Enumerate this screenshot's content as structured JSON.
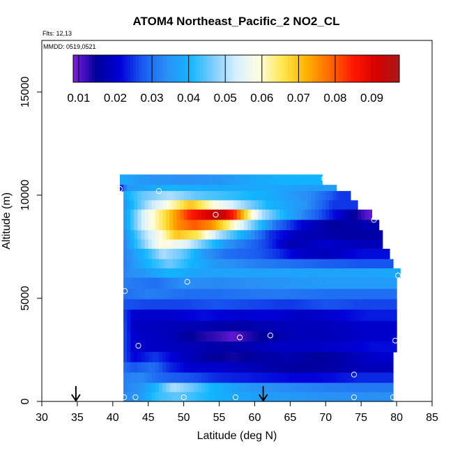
{
  "chart_data": {
    "type": "heatmap",
    "title": "ATOM4 Northeast_Pacific_2 NO2_CL",
    "flights_note": "Flts: 12,13",
    "date_note": "MMDD: 0519,0521",
    "xlabel": "Latitude (deg N)",
    "ylabel": "Altitude (m)",
    "xlim": [
      30,
      85
    ],
    "ylim": [
      0,
      17500
    ],
    "x_ticks": [
      "30",
      "35",
      "40",
      "45",
      "50",
      "55",
      "60",
      "65",
      "70",
      "75",
      "80",
      "85"
    ],
    "y_ticks": [
      "0",
      "5000",
      "10000",
      "15000"
    ],
    "colorbar": {
      "range": [
        0.0085,
        0.0975
      ],
      "tick_values": [
        0.01,
        0.02,
        0.03,
        0.04,
        0.05,
        0.06,
        0.07,
        0.08,
        0.09
      ],
      "tick_labels": [
        "0.01",
        "0.02",
        "0.03",
        "0.04",
        "0.05",
        "0.06",
        "0.07",
        "0.08",
        "0.09"
      ],
      "colors": [
        "#7f1fe0",
        "#00009a",
        "#0000d8",
        "#1a5cf0",
        "#2a8ff5",
        "#11b6ff",
        "#7dccff",
        "#d8f0ff",
        "#fffde0",
        "#ffe64d",
        "#ffb300",
        "#ff6a00",
        "#ff1a00",
        "#d80000",
        "#a81a1a"
      ]
    },
    "arrows_latitude": [
      34.8,
      61.2
    ],
    "layers": [
      {
        "alt": [
          10500,
          11000
        ],
        "lat": [
          41,
          69.5
        ],
        "cells": [
          [
            41,
            0.038
          ],
          [
            45,
            0.035
          ],
          [
            50,
            0.034
          ],
          [
            55,
            0.035
          ],
          [
            60,
            0.038
          ],
          [
            65,
            0.04
          ]
        ]
      },
      {
        "alt": [
          10200,
          10500
        ],
        "lat": [
          41,
          71.5
        ],
        "cells": [
          [
            41,
            0.02
          ],
          [
            42,
            0.035
          ],
          [
            48,
            0.04
          ],
          [
            55,
            0.038
          ],
          [
            62,
            0.038
          ],
          [
            68,
            0.036
          ]
        ]
      },
      {
        "alt": [
          9750,
          10200
        ],
        "lat": [
          41.5,
          73.5
        ],
        "cells": [
          [
            41.5,
            0.038
          ],
          [
            44,
            0.045
          ],
          [
            48,
            0.05
          ],
          [
            52,
            0.045
          ],
          [
            57,
            0.042
          ],
          [
            63,
            0.038
          ],
          [
            68,
            0.033
          ],
          [
            72,
            0.025
          ]
        ]
      },
      {
        "alt": [
          9300,
          9750
        ],
        "lat": [
          41.5,
          74.5
        ],
        "cells": [
          [
            41.5,
            0.035
          ],
          [
            45,
            0.05
          ],
          [
            48,
            0.06
          ],
          [
            51,
            0.07
          ],
          [
            54,
            0.06
          ],
          [
            58,
            0.05
          ],
          [
            62,
            0.04
          ],
          [
            67,
            0.035
          ],
          [
            71,
            0.025
          ]
        ]
      },
      {
        "alt": [
          8800,
          9300
        ],
        "lat": [
          41.5,
          76.5
        ],
        "cells": [
          [
            41.5,
            0.035
          ],
          [
            44.5,
            0.055
          ],
          [
            47,
            0.065
          ],
          [
            49,
            0.075
          ],
          [
            51,
            0.085
          ],
          [
            53,
            0.09
          ],
          [
            55,
            0.095
          ],
          [
            57,
            0.085
          ],
          [
            59,
            0.065
          ],
          [
            61,
            0.05
          ],
          [
            64,
            0.04
          ],
          [
            68,
            0.03
          ],
          [
            72,
            0.02
          ],
          [
            76,
            0.01
          ]
        ]
      },
      {
        "alt": [
          8300,
          8800
        ],
        "lat": [
          41.5,
          77.5
        ],
        "cells": [
          [
            41.5,
            0.035
          ],
          [
            44.5,
            0.055
          ],
          [
            47,
            0.065
          ],
          [
            49,
            0.075
          ],
          [
            51.5,
            0.08
          ],
          [
            54,
            0.075
          ],
          [
            57,
            0.06
          ],
          [
            60,
            0.045
          ],
          [
            63,
            0.03
          ],
          [
            67,
            0.02
          ],
          [
            71,
            0.015
          ],
          [
            75,
            0.017
          ]
        ]
      },
      {
        "alt": [
          7850,
          8300
        ],
        "lat": [
          41.5,
          78
        ],
        "cells": [
          [
            41.5,
            0.033
          ],
          [
            44.5,
            0.05
          ],
          [
            47,
            0.06
          ],
          [
            49,
            0.07
          ],
          [
            52,
            0.065
          ],
          [
            55,
            0.05
          ],
          [
            58,
            0.04
          ],
          [
            62,
            0.025
          ],
          [
            66,
            0.018
          ],
          [
            72,
            0.016
          ]
        ]
      },
      {
        "alt": [
          7400,
          7850
        ],
        "lat": [
          41.5,
          78
        ],
        "cells": [
          [
            41.5,
            0.032
          ],
          [
            44.5,
            0.048
          ],
          [
            47,
            0.06
          ],
          [
            50,
            0.055
          ],
          [
            53,
            0.045
          ],
          [
            56,
            0.035
          ],
          [
            59,
            0.03
          ],
          [
            62,
            0.025
          ],
          [
            65,
            0.017
          ],
          [
            70,
            0.02
          ],
          [
            74,
            0.018
          ]
        ]
      },
      {
        "alt": [
          6900,
          7400
        ],
        "lat": [
          41.5,
          79
        ],
        "cells": [
          [
            41.5,
            0.032
          ],
          [
            45,
            0.042
          ],
          [
            47,
            0.05
          ],
          [
            50,
            0.045
          ],
          [
            53,
            0.035
          ],
          [
            56,
            0.03
          ],
          [
            60,
            0.028
          ],
          [
            63,
            0.025
          ],
          [
            66,
            0.02
          ],
          [
            70,
            0.018
          ],
          [
            75,
            0.022
          ]
        ]
      },
      {
        "alt": [
          6450,
          6900
        ],
        "lat": [
          41.5,
          79.5
        ],
        "cells": [
          [
            41.5,
            0.032
          ],
          [
            45,
            0.04
          ],
          [
            48,
            0.046
          ],
          [
            51,
            0.04
          ],
          [
            55,
            0.035
          ],
          [
            60,
            0.032
          ],
          [
            65,
            0.03
          ],
          [
            70,
            0.028
          ],
          [
            75,
            0.027
          ]
        ]
      },
      {
        "alt": [
          6000,
          6450
        ],
        "lat": [
          41.5,
          80.5
        ],
        "cells": [
          [
            41.5,
            0.033
          ],
          [
            45,
            0.036
          ],
          [
            48,
            0.04
          ],
          [
            52,
            0.037
          ],
          [
            57,
            0.037
          ],
          [
            63,
            0.037
          ],
          [
            68,
            0.037
          ],
          [
            74,
            0.037
          ],
          [
            79,
            0.038
          ]
        ]
      },
      {
        "alt": [
          5450,
          6000
        ],
        "lat": [
          41.5,
          80
        ],
        "cells": [
          [
            41.5,
            0.032
          ],
          [
            46,
            0.03
          ],
          [
            50,
            0.034
          ],
          [
            55,
            0.033
          ],
          [
            60,
            0.034
          ],
          [
            65,
            0.035
          ],
          [
            70,
            0.036
          ],
          [
            75,
            0.036
          ]
        ]
      },
      {
        "alt": [
          4950,
          5450
        ],
        "lat": [
          41.5,
          80
        ],
        "cells": [
          [
            41.5,
            0.03
          ],
          [
            45,
            0.032
          ],
          [
            50,
            0.03
          ],
          [
            55,
            0.03
          ],
          [
            60,
            0.031
          ],
          [
            65,
            0.031
          ],
          [
            70,
            0.03
          ],
          [
            75,
            0.03
          ]
        ]
      },
      {
        "alt": [
          4450,
          4950
        ],
        "lat": [
          41.5,
          80
        ],
        "cells": [
          [
            41.5,
            0.027
          ],
          [
            45,
            0.026
          ],
          [
            50,
            0.026
          ],
          [
            55,
            0.027
          ],
          [
            60,
            0.026
          ],
          [
            65,
            0.025
          ],
          [
            70,
            0.027
          ],
          [
            75,
            0.026
          ]
        ]
      },
      {
        "alt": [
          3900,
          4450
        ],
        "lat": [
          41.5,
          80
        ],
        "cells": [
          [
            41.5,
            0.026
          ],
          [
            43,
            0.02
          ],
          [
            48,
            0.02
          ],
          [
            53,
            0.022
          ],
          [
            58,
            0.02
          ],
          [
            62,
            0.021
          ],
          [
            67,
            0.019
          ],
          [
            72,
            0.021
          ],
          [
            76,
            0.023
          ]
        ]
      },
      {
        "alt": [
          3400,
          3900
        ],
        "lat": [
          41.5,
          80
        ],
        "cells": [
          [
            41.5,
            0.027
          ],
          [
            43,
            0.019
          ],
          [
            48,
            0.018
          ],
          [
            53,
            0.017
          ],
          [
            57,
            0.016
          ],
          [
            61,
            0.017
          ],
          [
            65,
            0.018
          ],
          [
            70,
            0.018
          ],
          [
            75,
            0.02
          ]
        ]
      },
      {
        "alt": [
          2900,
          3400
        ],
        "lat": [
          41.5,
          80
        ],
        "cells": [
          [
            41.5,
            0.027
          ],
          [
            43,
            0.02
          ],
          [
            48,
            0.018
          ],
          [
            52,
            0.014
          ],
          [
            55,
            0.012
          ],
          [
            57,
            0.01
          ],
          [
            59,
            0.013
          ],
          [
            62,
            0.016
          ],
          [
            66,
            0.018
          ],
          [
            71,
            0.018
          ],
          [
            76,
            0.02
          ]
        ]
      },
      {
        "alt": [
          2400,
          2900
        ],
        "lat": [
          41.5,
          80
        ],
        "cells": [
          [
            41.5,
            0.027
          ],
          [
            43,
            0.02
          ],
          [
            47,
            0.019
          ],
          [
            51,
            0.018
          ],
          [
            55,
            0.016
          ],
          [
            59,
            0.017
          ],
          [
            63,
            0.019
          ],
          [
            67,
            0.019
          ],
          [
            72,
            0.02
          ],
          [
            77,
            0.022
          ]
        ]
      },
      {
        "alt": [
          1900,
          2400
        ],
        "lat": [
          41.5,
          79.5
        ],
        "cells": [
          [
            41.5,
            0.027
          ],
          [
            43,
            0.021
          ],
          [
            46,
            0.025
          ],
          [
            49,
            0.02
          ],
          [
            53,
            0.016
          ],
          [
            57,
            0.014
          ],
          [
            61,
            0.016
          ],
          [
            65,
            0.017
          ],
          [
            69,
            0.015
          ],
          [
            73,
            0.017
          ],
          [
            77,
            0.02
          ]
        ]
      },
      {
        "alt": [
          1400,
          1900
        ],
        "lat": [
          41.5,
          79.5
        ],
        "cells": [
          [
            41.5,
            0.03
          ],
          [
            43,
            0.027
          ],
          [
            45.5,
            0.03
          ],
          [
            48,
            0.024
          ],
          [
            51,
            0.02
          ],
          [
            55,
            0.02
          ],
          [
            59,
            0.018
          ],
          [
            63,
            0.016
          ],
          [
            67,
            0.015
          ],
          [
            71,
            0.016
          ],
          [
            75,
            0.018
          ]
        ]
      },
      {
        "alt": [
          900,
          1400
        ],
        "lat": [
          41.5,
          79.5
        ],
        "cells": [
          [
            41.5,
            0.032
          ],
          [
            44,
            0.033
          ],
          [
            46,
            0.03
          ],
          [
            48,
            0.028
          ],
          [
            51,
            0.027
          ],
          [
            55,
            0.024
          ],
          [
            59,
            0.023
          ],
          [
            63,
            0.022
          ],
          [
            67,
            0.021
          ],
          [
            71,
            0.022
          ],
          [
            75,
            0.024
          ]
        ]
      },
      {
        "alt": [
          450,
          900
        ],
        "lat": [
          41.5,
          79.5
        ],
        "cells": [
          [
            41.5,
            0.032
          ],
          [
            44,
            0.035
          ],
          [
            46,
            0.04
          ],
          [
            48.5,
            0.05
          ],
          [
            51,
            0.046
          ],
          [
            54,
            0.04
          ],
          [
            58,
            0.036
          ],
          [
            62,
            0.034
          ],
          [
            66,
            0.033
          ],
          [
            70,
            0.032
          ],
          [
            75,
            0.031
          ]
        ]
      },
      {
        "alt": [
          0,
          450
        ],
        "lat": [
          41.5,
          79.5
        ],
        "cells": [
          [
            41.5,
            0.033
          ],
          [
            44,
            0.036
          ],
          [
            46,
            0.042
          ],
          [
            49,
            0.045
          ],
          [
            52,
            0.042
          ],
          [
            55,
            0.039
          ],
          [
            59,
            0.037
          ],
          [
            63,
            0.036
          ],
          [
            67,
            0.035
          ],
          [
            71,
            0.034
          ],
          [
            75,
            0.034
          ]
        ]
      }
    ],
    "sample_points": [
      [
        41,
        10300
      ],
      [
        46.5,
        10200
      ],
      [
        69.8,
        10800
      ],
      [
        54.5,
        9050
      ],
      [
        59.8,
        9050
      ],
      [
        76.8,
        8800
      ],
      [
        50.5,
        5800
      ],
      [
        80.2,
        6100
      ],
      [
        41.7,
        5350
      ],
      [
        57.9,
        3100
      ],
      [
        62.2,
        3200
      ],
      [
        43.6,
        2700
      ],
      [
        79.8,
        2950
      ],
      [
        74,
        1300
      ],
      [
        41.6,
        200
      ],
      [
        43.2,
        200
      ],
      [
        50,
        200
      ],
      [
        57.3,
        200
      ],
      [
        74,
        200
      ],
      [
        79.5,
        200
      ]
    ]
  }
}
